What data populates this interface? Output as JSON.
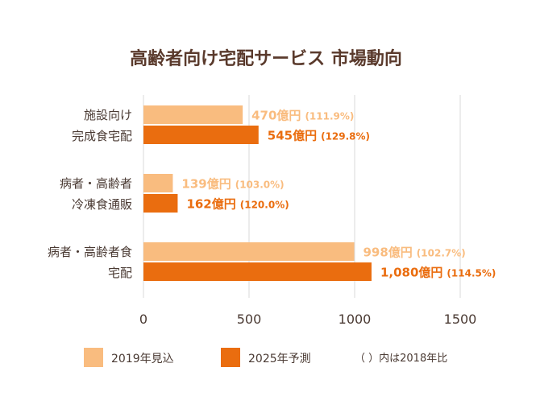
{
  "colors": {
    "series1": "#f9bc7f",
    "series2": "#ea6d0f",
    "text": "#4a3a33",
    "title": "#5a3a2c",
    "grid": "#d9d9d9"
  },
  "note": "（ ）内は2018年比",
  "chart_data": {
    "type": "bar",
    "orientation": "horizontal",
    "title": "高齢者向け宅配サービス 市場動向",
    "categories": [
      [
        "施設向け",
        "完成食宅配"
      ],
      [
        "病者・高齢者",
        "冷凍食通販"
      ],
      [
        "病者・高齢者食",
        "宅配"
      ]
    ],
    "series": [
      {
        "name": "2019年見込",
        "values": [
          470,
          139,
          998
        ],
        "labels": [
          "470億円",
          "139億円",
          "998億円"
        ],
        "growth": [
          "(111.9%)",
          "(103.0%)",
          "(102.7%)"
        ]
      },
      {
        "name": "2025年予測",
        "values": [
          545,
          162,
          1080
        ],
        "labels": [
          "545億円",
          "162億円",
          "1,080億円"
        ],
        "growth": [
          "(129.8%)",
          "(120.0%)",
          "(114.5%)"
        ]
      }
    ],
    "xlim": [
      0,
      1500
    ],
    "xticks": [
      0,
      500,
      1000,
      1500
    ],
    "grid": true,
    "legend_position": "bottom"
  }
}
